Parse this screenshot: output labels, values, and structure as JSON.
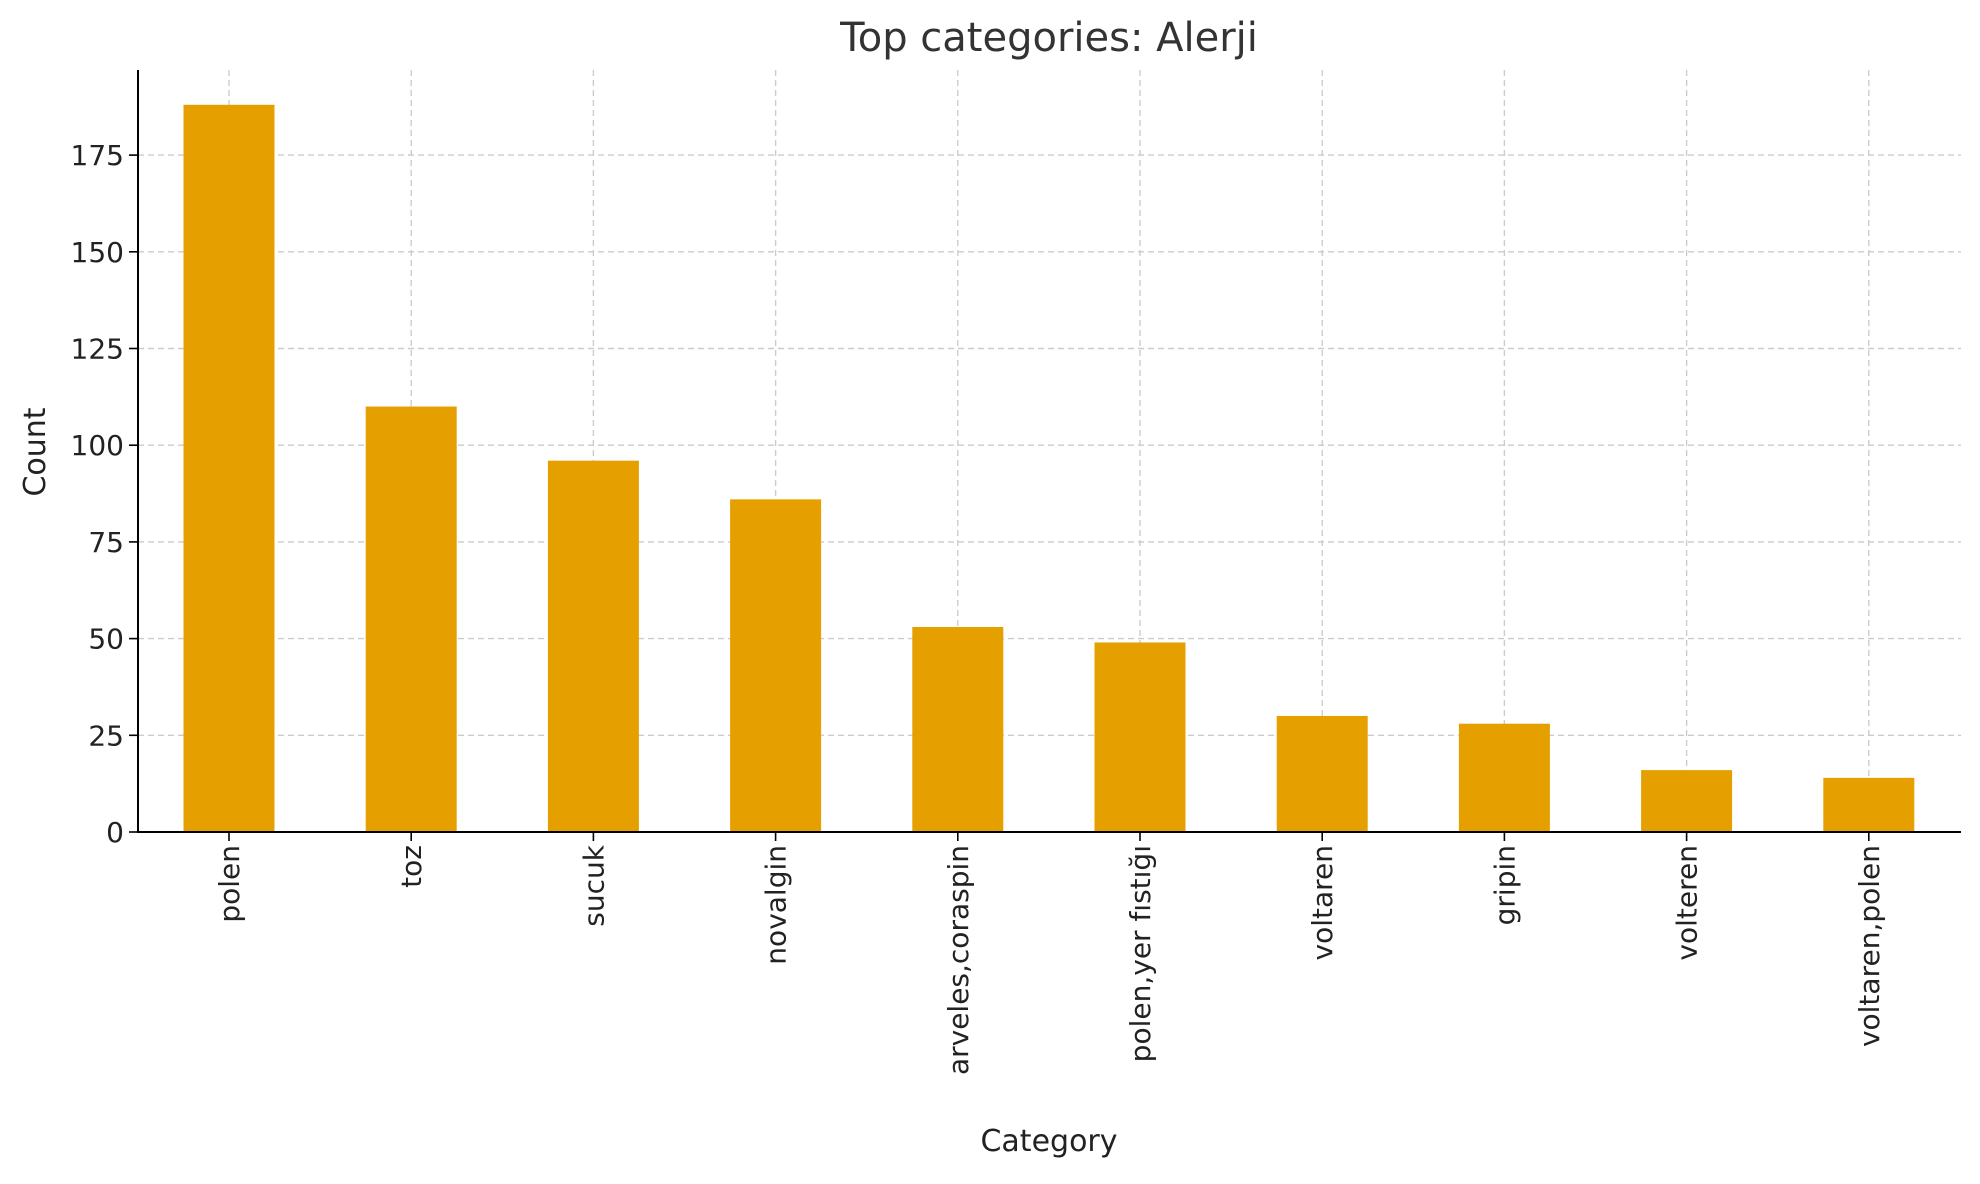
{
  "chart_data": {
    "type": "bar",
    "title": "Top categories: Alerji",
    "xlabel": "Category",
    "ylabel": "Count",
    "categories": [
      "polen",
      "toz",
      "sucuk",
      "novalgin",
      "arveles,coraspin",
      "polen,yer fıstığı",
      "voltaren",
      "gripin",
      "volteren",
      "voltaren,polen"
    ],
    "values": [
      188,
      110,
      96,
      86,
      53,
      49,
      30,
      28,
      16,
      14
    ],
    "ylim": [
      0,
      197
    ],
    "yticks": [
      0,
      25,
      50,
      75,
      100,
      125,
      150,
      175
    ],
    "grid": true,
    "bar_color": "#e5a000"
  }
}
